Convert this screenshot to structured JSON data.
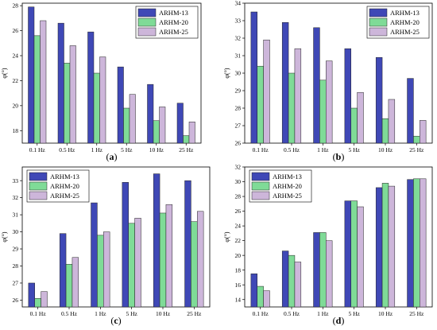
{
  "colors": {
    "series": [
      "#3F48B6",
      "#7FDB97",
      "#CDB6DA"
    ],
    "stroke": "#222222"
  },
  "chart_data": [
    {
      "type": "bar",
      "panel_label": "(a)",
      "ylabel": "φ(°)",
      "categories": [
        "0.1 Hz",
        "0.5 Hz",
        "1 Hz",
        "5 Hz",
        "10 Hz",
        "25 Hz"
      ],
      "ylim": [
        17,
        28.2
      ],
      "yticks": [
        18,
        20,
        22,
        24,
        26,
        28
      ],
      "legend_position": "top-right",
      "series": [
        {
          "name": "ARHM-13",
          "values": [
            27.9,
            26.6,
            25.9,
            23.1,
            21.7,
            20.2
          ]
        },
        {
          "name": "ARHM-20",
          "values": [
            25.6,
            23.4,
            22.6,
            19.8,
            18.8,
            17.6
          ]
        },
        {
          "name": "ARHM-25",
          "values": [
            26.8,
            24.8,
            23.9,
            20.9,
            19.9,
            18.7
          ]
        }
      ]
    },
    {
      "type": "bar",
      "panel_label": "(b)",
      "ylabel": "φ(°)",
      "categories": [
        "0.1 Hz",
        "0.5 Hz",
        "1 Hz",
        "5 Hz",
        "10 Hz",
        "25 Hz"
      ],
      "ylim": [
        26,
        34
      ],
      "yticks": [
        26,
        27,
        28,
        29,
        30,
        31,
        32,
        33,
        34
      ],
      "legend_position": "top-right",
      "series": [
        {
          "name": "ARHM-13",
          "values": [
            33.5,
            32.9,
            32.6,
            31.4,
            30.9,
            29.7
          ]
        },
        {
          "name": "ARHM-20",
          "values": [
            30.4,
            30.0,
            29.6,
            28.0,
            27.4,
            26.4
          ]
        },
        {
          "name": "ARHM-25",
          "values": [
            31.9,
            31.4,
            30.7,
            28.9,
            28.5,
            27.3
          ]
        }
      ]
    },
    {
      "type": "bar",
      "panel_label": "(c)",
      "ylabel": "φ(°)",
      "categories": [
        "0.1 Hz",
        "0.5 Hz",
        "1 Hz",
        "5 Hz",
        "10 Hz",
        "25 Hz"
      ],
      "ylim": [
        25.6,
        33.8
      ],
      "yticks": [
        26,
        27,
        28,
        29,
        30,
        31,
        32,
        33
      ],
      "legend_position": "top-left",
      "series": [
        {
          "name": "ARHM-13",
          "values": [
            27.0,
            29.9,
            31.7,
            32.9,
            33.4,
            33.0
          ]
        },
        {
          "name": "ARHM-20",
          "values": [
            26.1,
            28.1,
            29.8,
            30.5,
            31.1,
            30.6
          ]
        },
        {
          "name": "ARHM-25",
          "values": [
            26.5,
            28.5,
            30.0,
            30.8,
            31.6,
            31.2
          ]
        }
      ]
    },
    {
      "type": "bar",
      "panel_label": "(d)",
      "ylabel": "φ(°)",
      "categories": [
        "0.1 Hz",
        "0.5 Hz",
        "1 Hz",
        "5 Hz",
        "10 Hz",
        "25 Hz"
      ],
      "ylim": [
        13,
        32
      ],
      "yticks": [
        14,
        16,
        18,
        20,
        22,
        24,
        26,
        28,
        30,
        32
      ],
      "legend_position": "top-left",
      "series": [
        {
          "name": "ARHM-13",
          "values": [
            17.5,
            20.6,
            23.1,
            27.4,
            29.2,
            30.3
          ]
        },
        {
          "name": "ARHM-20",
          "values": [
            15.8,
            20.0,
            23.1,
            27.4,
            29.8,
            30.4
          ]
        },
        {
          "name": "ARHM-25",
          "values": [
            15.2,
            19.1,
            22.0,
            26.6,
            29.4,
            30.4
          ]
        }
      ]
    }
  ]
}
